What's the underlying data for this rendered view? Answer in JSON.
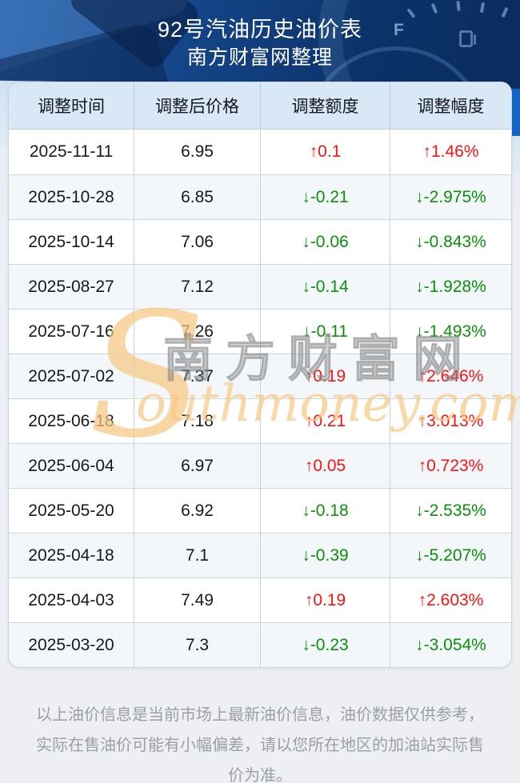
{
  "header": {
    "title": "92号汽油历史油价表",
    "subtitle": "南方财富网整理",
    "gauge_letter": "F"
  },
  "table": {
    "columns": [
      "调整时间",
      "调整后价格",
      "调整额度",
      "调整幅度"
    ],
    "rows": [
      {
        "date": "2025-11-11",
        "price": "6.95",
        "change": "↑0.1",
        "pct": "↑1.46%",
        "dir": "up"
      },
      {
        "date": "2025-10-28",
        "price": "6.85",
        "change": "↓-0.21",
        "pct": "↓-2.975%",
        "dir": "down"
      },
      {
        "date": "2025-10-14",
        "price": "7.06",
        "change": "↓-0.06",
        "pct": "↓-0.843%",
        "dir": "down"
      },
      {
        "date": "2025-08-27",
        "price": "7.12",
        "change": "↓-0.14",
        "pct": "↓-1.928%",
        "dir": "down"
      },
      {
        "date": "2025-07-16",
        "price": "7.26",
        "change": "↓-0.11",
        "pct": "↓-1.493%",
        "dir": "down"
      },
      {
        "date": "2025-07-02",
        "price": "7.37",
        "change": "↑0.19",
        "pct": "↑2.646%",
        "dir": "up"
      },
      {
        "date": "2025-06-18",
        "price": "7.18",
        "change": "↑0.21",
        "pct": "↑3.013%",
        "dir": "up"
      },
      {
        "date": "2025-06-04",
        "price": "6.97",
        "change": "↑0.05",
        "pct": "↑0.723%",
        "dir": "up"
      },
      {
        "date": "2025-05-20",
        "price": "6.92",
        "change": "↓-0.18",
        "pct": "↓-2.535%",
        "dir": "down"
      },
      {
        "date": "2025-04-18",
        "price": "7.1",
        "change": "↓-0.39",
        "pct": "↓-5.207%",
        "dir": "down"
      },
      {
        "date": "2025-04-03",
        "price": "7.49",
        "change": "↑0.19",
        "pct": "↑2.603%",
        "dir": "up"
      },
      {
        "date": "2025-03-20",
        "price": "7.3",
        "change": "↓-0.23",
        "pct": "↓-3.054%",
        "dir": "down"
      }
    ]
  },
  "watermark": {
    "latin_s": "S",
    "cjk": "南方财富网",
    "latin_rest": "outhmoney.com"
  },
  "footer": {
    "note": "以上油价信息是当前市场上最新油价信息，油价数据仅供参考，实际在售油价可能有小幅偏差，请以您所在地区的加油站实际售价为准。"
  },
  "colors": {
    "up_red": "#fd1111",
    "down_green": "#0a9009",
    "header_row_bg": "#d9e8f7",
    "hero_blue": "#0c3268",
    "accent_bright_blue": "#1465c6"
  }
}
